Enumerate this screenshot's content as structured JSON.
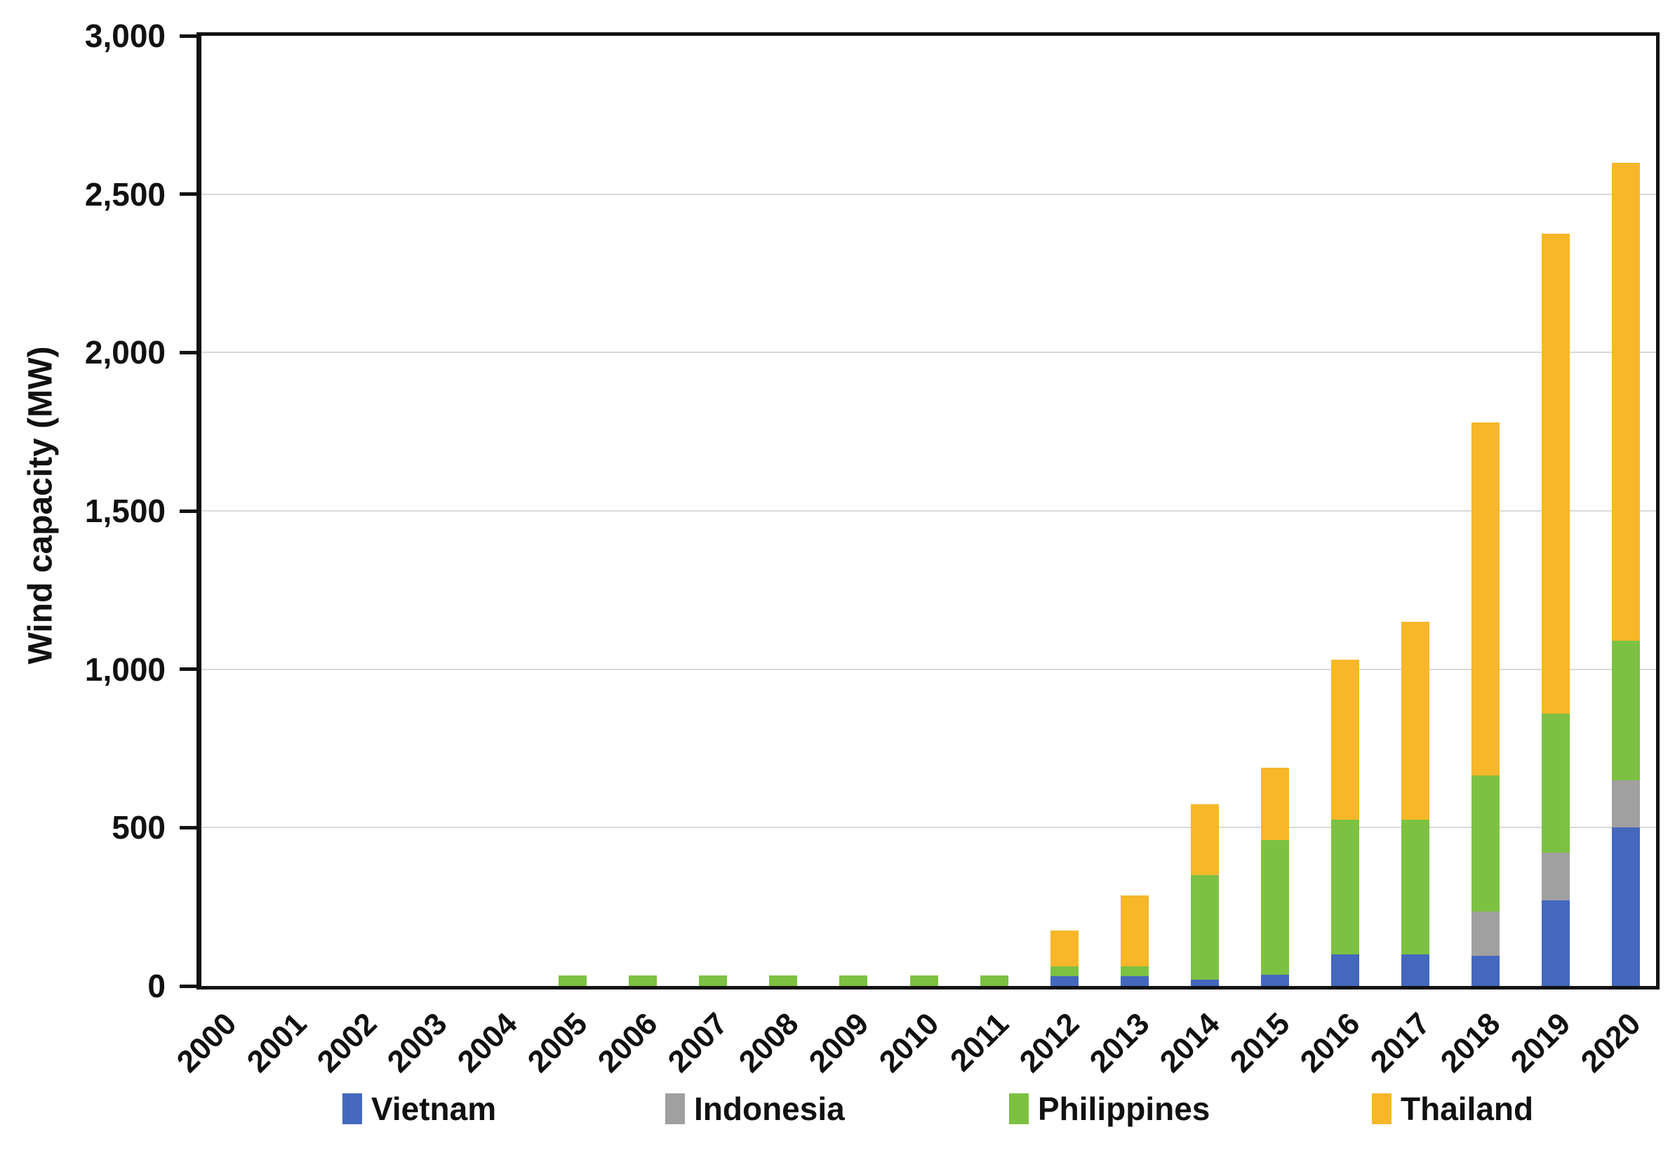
{
  "chart_data": {
    "type": "bar",
    "stacked": true,
    "title": "",
    "ylabel": "Wind capacity (MW)",
    "xlabel": "",
    "ylim": [
      0,
      3000
    ],
    "ytick_interval": 500,
    "ytick_labels": [
      "0",
      "500",
      "1,000",
      "1,500",
      "2,000",
      "2,500",
      "3,000"
    ],
    "grid": true,
    "legend_position": "bottom",
    "categories": [
      "2000",
      "2001",
      "2002",
      "2003",
      "2004",
      "2005",
      "2006",
      "2007",
      "2008",
      "2009",
      "2010",
      "2011",
      "2012",
      "2013",
      "2014",
      "2015",
      "2016",
      "2017",
      "2018",
      "2019",
      "2020"
    ],
    "series": [
      {
        "name": "Vietnam",
        "color": "#4468BE",
        "values": [
          0,
          0,
          0,
          0,
          0,
          0,
          0,
          0,
          0,
          0,
          0,
          0,
          30,
          30,
          20,
          35,
          100,
          100,
          95,
          270,
          500
        ]
      },
      {
        "name": "Indonesia",
        "color": "#A0A0A0",
        "values": [
          0,
          0,
          0,
          0,
          0,
          0,
          0,
          0,
          0,
          0,
          0,
          0,
          0,
          0,
          0,
          0,
          0,
          0,
          140,
          150,
          150
        ]
      },
      {
        "name": "Philippines",
        "color": "#7DC142",
        "values": [
          0,
          0,
          0,
          0,
          0,
          33,
          33,
          33,
          33,
          33,
          33,
          33,
          33,
          33,
          330,
          425,
          425,
          425,
          430,
          440,
          440
        ]
      },
      {
        "name": "Thailand",
        "color": "#F7B729",
        "values": [
          0,
          0,
          0,
          0,
          0,
          0,
          0,
          0,
          0,
          0,
          0,
          0,
          112,
          223,
          225,
          230,
          505,
          625,
          1115,
          1515,
          1510
        ]
      }
    ],
    "totals": [
      0,
      0,
      0,
      0,
      0,
      33,
      33,
      33,
      33,
      33,
      33,
      33,
      175,
      286,
      575,
      690,
      1030,
      1150,
      1780,
      2375,
      2600
    ],
    "colors": {
      "axis": "#111111",
      "gridline": "#d9d9d9",
      "background": "#ffffff"
    }
  }
}
